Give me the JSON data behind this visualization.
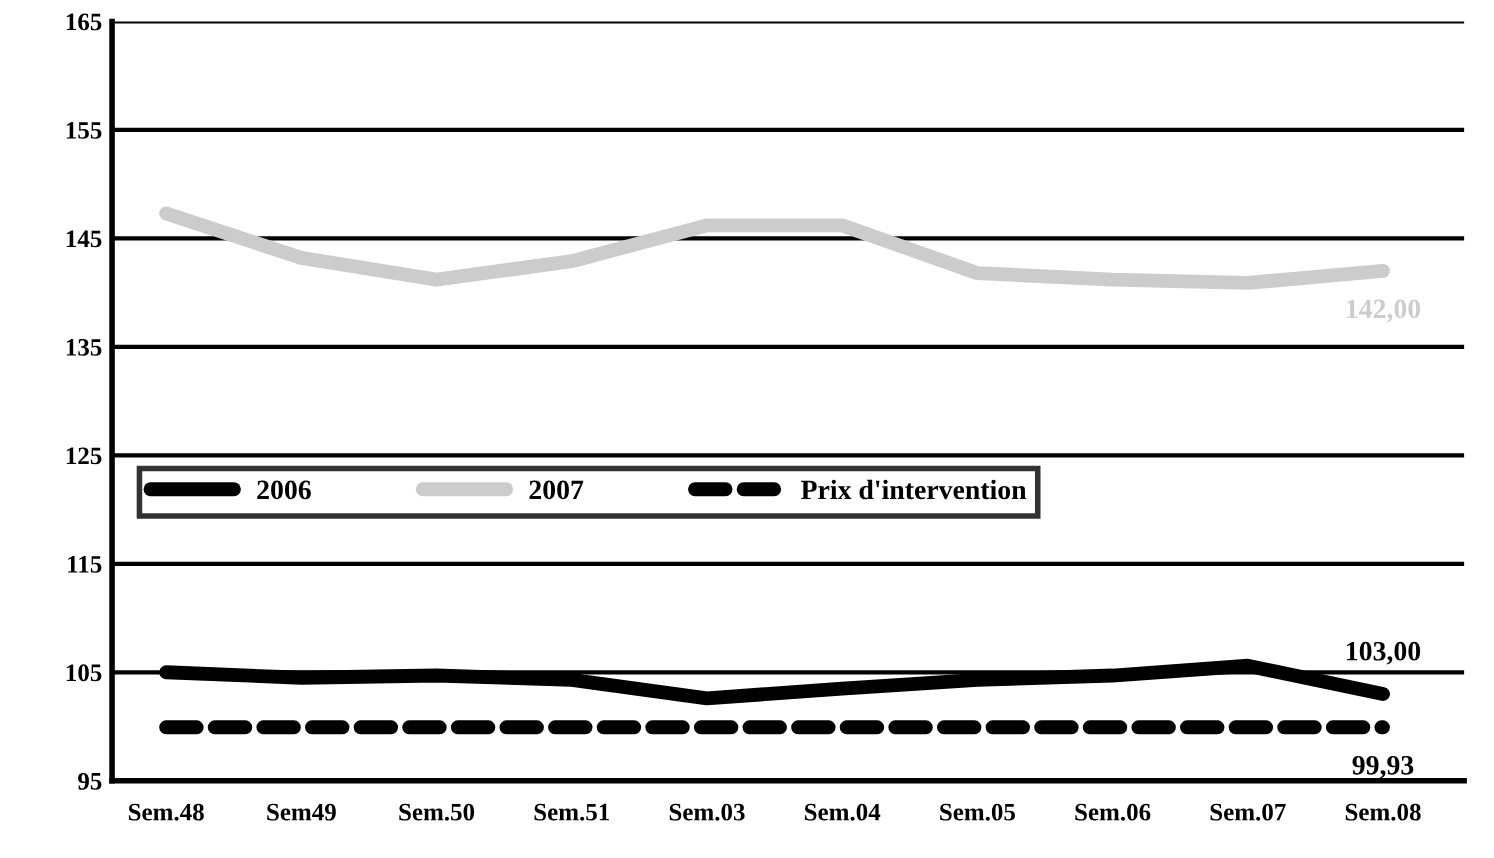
{
  "chart_data": {
    "type": "line",
    "categories": [
      "Sem.48",
      "Sem49",
      "Sem.50",
      "Sem.51",
      "Sem.03",
      "Sem.04",
      "Sem.05",
      "Sem.06",
      "Sem.07",
      "Sem.08"
    ],
    "series": [
      {
        "name": "2006",
        "color": "#000000",
        "values": [
          105.0,
          104.5,
          104.7,
          104.3,
          102.6,
          103.5,
          104.3,
          104.7,
          105.6,
          103.0
        ],
        "value_labels": [
          null,
          null,
          null,
          null,
          null,
          null,
          null,
          null,
          null,
          "103,00"
        ]
      },
      {
        "name": "2007",
        "color": "#cccccc",
        "values": [
          147.3,
          143.2,
          141.2,
          142.9,
          146.2,
          146.2,
          141.8,
          141.2,
          140.9,
          142.0
        ],
        "value_labels": [
          null,
          null,
          null,
          null,
          null,
          null,
          null,
          null,
          null,
          "142,00"
        ]
      },
      {
        "name": "Prix d'intervention",
        "color": "#000000",
        "line_style": "dashed",
        "values": [
          99.93,
          99.93,
          99.93,
          99.93,
          99.93,
          99.93,
          99.93,
          99.93,
          99.93,
          99.93
        ],
        "value_labels": [
          null,
          null,
          null,
          null,
          null,
          null,
          null,
          null,
          null,
          "99,93"
        ]
      }
    ],
    "ylim": [
      95,
      165
    ],
    "yticks": [
      95,
      105,
      115,
      125,
      135,
      145,
      155,
      165
    ],
    "grid": "y",
    "legend": "left",
    "marker": "none"
  }
}
